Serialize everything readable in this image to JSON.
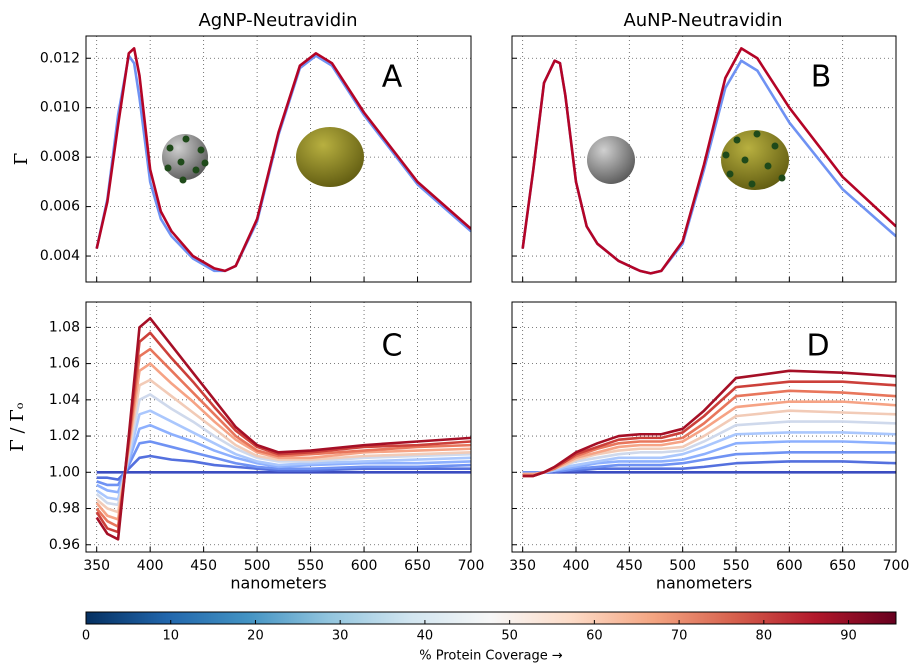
{
  "chart_data": [
    {
      "type": "line",
      "title": "AgNP-Neutravidin",
      "annotation": "A",
      "ylabel": "Γ",
      "x": [
        350,
        360,
        370,
        380,
        385,
        390,
        400,
        410,
        420,
        440,
        460,
        470,
        480,
        500,
        520,
        540,
        555,
        570,
        600,
        650,
        700
      ],
      "series": [
        {
          "color": "#6f92f3",
          "values": [
            0.0043,
            0.0063,
            0.0097,
            0.0121,
            0.0118,
            0.0104,
            0.007,
            0.0055,
            0.0048,
            0.0039,
            0.0034,
            0.0034,
            0.0036,
            0.0054,
            0.0089,
            0.0116,
            0.0121,
            0.0117,
            0.0097,
            0.0069,
            0.005
          ]
        },
        {
          "color": "#b40426",
          "values": [
            0.0043,
            0.0062,
            0.0093,
            0.0122,
            0.0124,
            0.0113,
            0.0075,
            0.0058,
            0.005,
            0.004,
            0.0035,
            0.0034,
            0.0036,
            0.0055,
            0.009,
            0.0117,
            0.0122,
            0.0118,
            0.0098,
            0.007,
            0.0051
          ]
        }
      ],
      "xlim": [
        340,
        700
      ],
      "xticks": [
        350,
        400,
        450,
        500,
        550,
        600,
        650,
        700
      ],
      "ylim": [
        0.00295,
        0.0129
      ],
      "yticks": [
        0.004,
        0.006,
        0.008,
        {
          "value": 0.01,
          "label": "0.010"
        },
        0.012
      ],
      "grid": true
    },
    {
      "type": "line",
      "title": "AuNP-Neutravidin",
      "annotation": "B",
      "x": [
        350,
        360,
        370,
        380,
        385,
        390,
        400,
        410,
        420,
        440,
        460,
        470,
        480,
        500,
        520,
        540,
        555,
        570,
        600,
        650,
        700
      ],
      "series": [
        {
          "color": "#6f92f3",
          "values": [
            0.0043,
            0.0075,
            0.011,
            0.0119,
            0.0118,
            0.0105,
            0.007,
            0.0052,
            0.0045,
            0.0038,
            0.0034,
            0.0033,
            0.0034,
            0.0045,
            0.0075,
            0.0108,
            0.0119,
            0.0115,
            0.0094,
            0.0067,
            0.0048
          ]
        },
        {
          "color": "#b40426",
          "values": [
            0.0043,
            0.0075,
            0.011,
            0.0119,
            0.0118,
            0.0105,
            0.007,
            0.0052,
            0.0045,
            0.0038,
            0.0034,
            0.0033,
            0.0034,
            0.0046,
            0.0077,
            0.0112,
            0.0124,
            0.012,
            0.01,
            0.0072,
            0.0052
          ]
        }
      ],
      "xlim": [
        340,
        700
      ],
      "xticks": [
        350,
        400,
        450,
        500,
        550,
        600,
        650,
        700
      ],
      "ylim": [
        0.00295,
        0.0129
      ],
      "yticks": [
        0.004,
        0.006,
        0.008,
        {
          "value": 0.01,
          "label": "0.010"
        },
        0.012
      ],
      "grid": true
    },
    {
      "type": "line",
      "annotation": "C",
      "ylabel": "Γ / Γₒ",
      "xlabel": "nanometers",
      "x": [
        350,
        360,
        370,
        380,
        390,
        400,
        420,
        440,
        460,
        480,
        500,
        520,
        550,
        600,
        650,
        700
      ],
      "series": [
        {
          "color": "#3b4cc0",
          "values": [
            1,
            1,
            1,
            1,
            1,
            1,
            1,
            1,
            1,
            1,
            1,
            1,
            1,
            1,
            1,
            1
          ]
        },
        {
          "color": "#5470de",
          "values": [
            0.997,
            0.997,
            0.996,
            1.002,
            1.008,
            1.009,
            1.007,
            1.006,
            1.004,
            1.003,
            1.002,
            1.001,
            1.001,
            1.002,
            1.002,
            1.002
          ]
        },
        {
          "color": "#6f92f3",
          "values": [
            0.995,
            0.993,
            0.993,
            1.004,
            1.016,
            1.017,
            1.014,
            1.011,
            1.008,
            1.005,
            1.003,
            1.002,
            1.002,
            1.003,
            1.003,
            1.004
          ]
        },
        {
          "color": "#8db0fe",
          "values": [
            0.993,
            0.99,
            0.989,
            1.006,
            1.024,
            1.026,
            1.021,
            1.017,
            1.012,
            1.008,
            1.005,
            1.003,
            1.004,
            1.005,
            1.005,
            1.006
          ]
        },
        {
          "color": "#aac7fd",
          "values": [
            0.99,
            0.986,
            0.985,
            1.008,
            1.032,
            1.034,
            1.028,
            1.022,
            1.016,
            1.01,
            1.006,
            1.004,
            1.005,
            1.006,
            1.007,
            1.008
          ]
        },
        {
          "color": "#cfd9ec",
          "values": [
            0.988,
            0.983,
            0.982,
            1.01,
            1.04,
            1.043,
            1.035,
            1.028,
            1.02,
            1.013,
            1.008,
            1.006,
            1.006,
            1.008,
            1.009,
            1.01
          ]
        },
        {
          "color": "#f2cbb7",
          "values": [
            0.985,
            0.98,
            0.978,
            1.012,
            1.048,
            1.051,
            1.042,
            1.033,
            1.024,
            1.015,
            1.009,
            1.007,
            1.007,
            1.009,
            1.01,
            1.011
          ]
        },
        {
          "color": "#f6a385",
          "values": [
            0.983,
            0.976,
            0.974,
            1.014,
            1.056,
            1.06,
            1.049,
            1.039,
            1.028,
            1.018,
            1.011,
            1.008,
            1.008,
            1.011,
            1.012,
            1.013
          ]
        },
        {
          "color": "#e8765c",
          "values": [
            0.98,
            0.973,
            0.97,
            1.016,
            1.064,
            1.068,
            1.056,
            1.044,
            1.032,
            1.02,
            1.012,
            1.009,
            1.01,
            1.012,
            1.014,
            1.015
          ]
        },
        {
          "color": "#cc403a",
          "values": [
            0.978,
            0.969,
            0.967,
            1.018,
            1.072,
            1.077,
            1.063,
            1.05,
            1.036,
            1.023,
            1.014,
            1.01,
            1.011,
            1.014,
            1.015,
            1.017
          ]
        },
        {
          "color": "#a50f26",
          "values": [
            0.975,
            0.966,
            0.963,
            1.02,
            1.08,
            1.085,
            1.07,
            1.055,
            1.04,
            1.025,
            1.015,
            1.011,
            1.012,
            1.015,
            1.017,
            1.019
          ]
        }
      ],
      "xlim": [
        340,
        700
      ],
      "xticks": [
        350,
        400,
        450,
        500,
        550,
        600,
        650,
        700
      ],
      "ylim": [
        0.956,
        1.094
      ],
      "yticks": [
        0.96,
        0.98,
        {
          "value": 1,
          "label": "1.00"
        },
        1.02,
        1.04,
        1.06,
        1.08
      ],
      "grid": true
    },
    {
      "type": "line",
      "annotation": "D",
      "xlabel": "nanometers",
      "x": [
        350,
        360,
        370,
        380,
        390,
        400,
        420,
        440,
        460,
        480,
        500,
        520,
        550,
        600,
        650,
        700
      ],
      "series": [
        {
          "color": "#3b4cc0",
          "values": [
            1,
            1,
            1,
            1,
            1,
            1,
            1,
            1,
            1,
            1,
            1,
            1,
            1,
            1,
            1,
            1
          ]
        },
        {
          "color": "#5470de",
          "values": [
            1.0,
            1.0,
            1.0,
            1.0,
            1.001,
            1.001,
            1.002,
            1.002,
            1.002,
            1.002,
            1.002,
            1.003,
            1.005,
            1.006,
            1.006,
            1.005
          ]
        },
        {
          "color": "#6f92f3",
          "values": [
            1.0,
            1.0,
            1.0,
            1.001,
            1.001,
            1.002,
            1.003,
            1.004,
            1.004,
            1.004,
            1.005,
            1.007,
            1.01,
            1.011,
            1.011,
            1.011
          ]
        },
        {
          "color": "#8db0fe",
          "values": [
            0.999,
            0.999,
            1.0,
            1.001,
            1.002,
            1.003,
            1.005,
            1.006,
            1.006,
            1.006,
            1.007,
            1.01,
            1.016,
            1.017,
            1.017,
            1.016
          ]
        },
        {
          "color": "#aac7fd",
          "values": [
            0.999,
            0.999,
            1.0,
            1.001,
            1.003,
            1.004,
            1.006,
            1.008,
            1.008,
            1.008,
            1.01,
            1.014,
            1.021,
            1.022,
            1.022,
            1.021
          ]
        },
        {
          "color": "#cfd9ec",
          "values": [
            0.999,
            0.999,
            1.0,
            1.002,
            1.004,
            1.006,
            1.008,
            1.01,
            1.011,
            1.011,
            1.012,
            1.017,
            1.026,
            1.028,
            1.028,
            1.027
          ]
        },
        {
          "color": "#f2cbb7",
          "values": [
            0.999,
            0.999,
            1.0,
            1.002,
            1.004,
            1.007,
            1.01,
            1.012,
            1.013,
            1.013,
            1.014,
            1.02,
            1.031,
            1.034,
            1.033,
            1.032
          ]
        },
        {
          "color": "#f6a385",
          "values": [
            0.999,
            0.999,
            1.0,
            1.002,
            1.005,
            1.008,
            1.011,
            1.014,
            1.015,
            1.015,
            1.017,
            1.024,
            1.036,
            1.039,
            1.039,
            1.037
          ]
        },
        {
          "color": "#e8765c",
          "values": [
            0.998,
            0.998,
            1.0,
            1.002,
            1.006,
            1.009,
            1.013,
            1.016,
            1.017,
            1.017,
            1.019,
            1.027,
            1.042,
            1.045,
            1.044,
            1.042
          ]
        },
        {
          "color": "#cc403a",
          "values": [
            0.998,
            0.998,
            1.0,
            1.003,
            1.006,
            1.01,
            1.014,
            1.018,
            1.019,
            1.019,
            1.022,
            1.031,
            1.047,
            1.05,
            1.05,
            1.048
          ]
        },
        {
          "color": "#a50f26",
          "values": [
            0.998,
            0.998,
            1.0,
            1.003,
            1.007,
            1.011,
            1.016,
            1.02,
            1.021,
            1.021,
            1.024,
            1.034,
            1.052,
            1.056,
            1.055,
            1.053
          ]
        }
      ],
      "xlim": [
        340,
        700
      ],
      "xticks": [
        350,
        400,
        450,
        500,
        550,
        600,
        650,
        700
      ],
      "ylim": [
        0.956,
        1.094
      ],
      "yticks": [
        0.96,
        0.98,
        {
          "value": 1,
          "label": "1.00"
        },
        1.02,
        1.04,
        1.06,
        1.08
      ],
      "grid": true
    },
    {
      "type": "colorbar",
      "label": "% Protein Coverage →",
      "clim": [
        0,
        95.6
      ],
      "ticks": [
        0,
        10,
        20,
        30,
        40,
        50,
        60,
        70,
        80,
        90
      ],
      "colors": [
        "#053061",
        "#2166ac",
        "#4393c3",
        "#92c5de",
        "#d1e5f0",
        "#f7f7f7",
        "#fddbc7",
        "#f4a582",
        "#d6604d",
        "#b2182b",
        "#67001f"
      ]
    }
  ]
}
